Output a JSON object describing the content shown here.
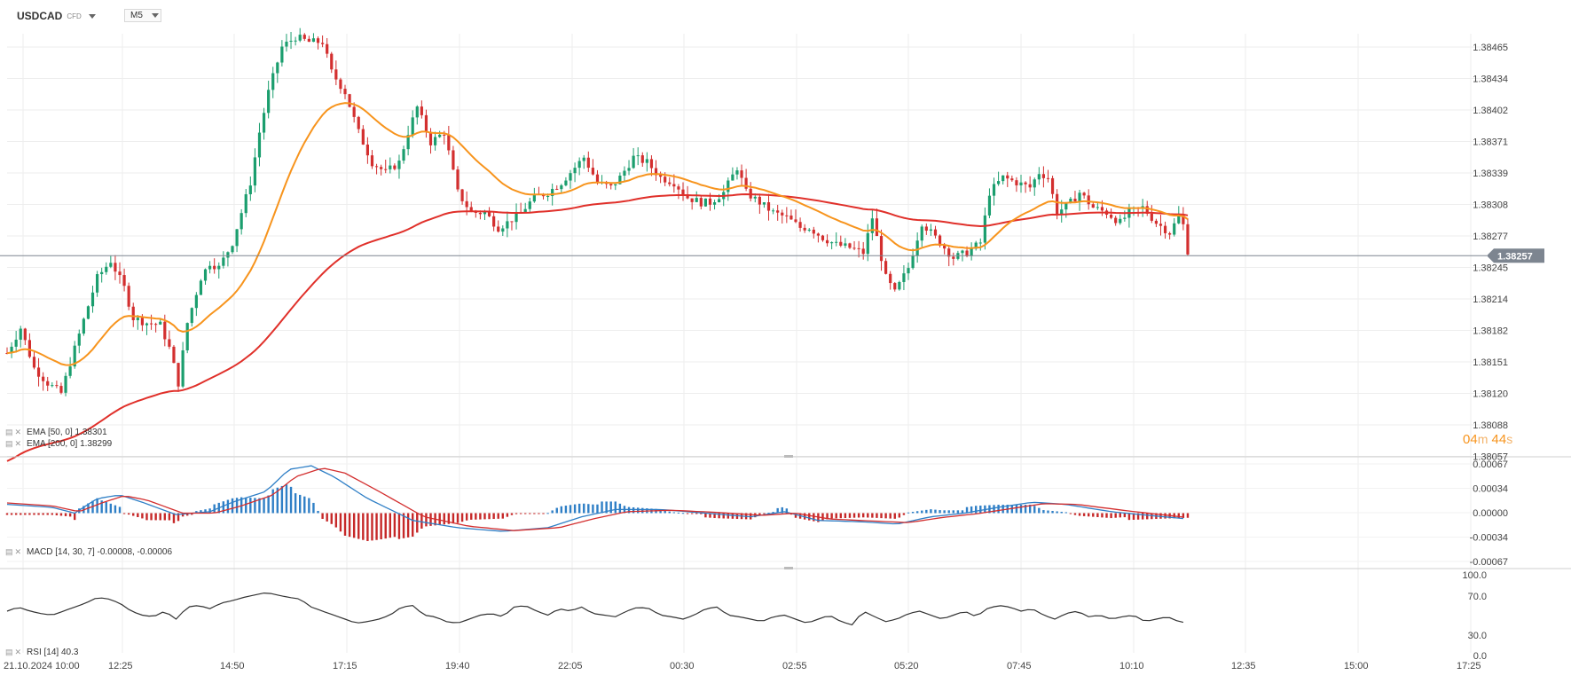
{
  "header": {
    "symbol": "USDCAD",
    "instrument_type": "CFD",
    "timeframe": "M5"
  },
  "countdown": {
    "minutes": "04",
    "m": "m",
    "seconds": "44",
    "s": "s"
  },
  "indicators": {
    "ema50": {
      "label": "EMA [50, 0] 1.38301",
      "color": "#f7941d"
    },
    "ema200": {
      "label": "EMA [200, 0] 1.38299",
      "color": "#e0302a"
    },
    "macd": {
      "label": "MACD [14, 30, 7] -0.00008, -0.00006"
    },
    "rsi": {
      "label": "RSI [14] 40.3"
    }
  },
  "colors": {
    "up": "#1b9e6e",
    "down": "#d32f2f",
    "macd_pos": "#2f7fc6",
    "macd_neg": "#c62828",
    "price_tag": "#7d8590"
  },
  "chart_data": [
    {
      "type": "candlestick",
      "title": "USDCAD M5",
      "y_ticks": [
        "1.38465",
        "1.38434",
        "1.38402",
        "1.38371",
        "1.38339",
        "1.38308",
        "1.38277",
        "1.38245",
        "1.38214",
        "1.38182",
        "1.38151",
        "1.38120",
        "1.38088",
        "1.38057"
      ],
      "ylim": [
        1.38057,
        1.3848
      ],
      "x_ticks": [
        "21.10.2024 10:00",
        "12:25",
        "14:50",
        "17:15",
        "19:40",
        "22:05",
        "00:30",
        "02:55",
        "05:20",
        "07:45",
        "10:10",
        "12:35",
        "15:00",
        "17:25"
      ],
      "current_price": "1.38257",
      "close_path": [
        [
          0,
          1.3816
        ],
        [
          6,
          1.38185
        ],
        [
          12,
          1.38145
        ],
        [
          18,
          1.3813
        ],
        [
          24,
          1.3812
        ],
        [
          28,
          1.3815
        ],
        [
          35,
          1.382
        ],
        [
          40,
          1.38235
        ],
        [
          46,
          1.38252
        ],
        [
          52,
          1.38225
        ],
        [
          56,
          1.38195
        ],
        [
          62,
          1.3819
        ],
        [
          68,
          1.38188
        ],
        [
          72,
          1.38165
        ],
        [
          76,
          1.3813
        ],
        [
          80,
          1.3819
        ],
        [
          86,
          1.38235
        ],
        [
          90,
          1.3825
        ],
        [
          94,
          1.38245
        ],
        [
          100,
          1.3827
        ],
        [
          104,
          1.383
        ],
        [
          108,
          1.3833
        ],
        [
          112,
          1.3838
        ],
        [
          116,
          1.3842
        ],
        [
          122,
          1.38465
        ],
        [
          128,
          1.38475
        ],
        [
          134,
          1.3847
        ],
        [
          140,
          1.3847
        ],
        [
          144,
          1.3844
        ],
        [
          150,
          1.3842
        ],
        [
          156,
          1.3838
        ],
        [
          162,
          1.3835
        ],
        [
          168,
          1.3834
        ],
        [
          174,
          1.3835
        ],
        [
          178,
          1.3838
        ],
        [
          182,
          1.38405
        ],
        [
          188,
          1.3837
        ],
        [
          194,
          1.3838
        ],
        [
          200,
          1.3832
        ],
        [
          206,
          1.383
        ],
        [
          212,
          1.383
        ],
        [
          218,
          1.38285
        ],
        [
          222,
          1.3829
        ],
        [
          228,
          1.383
        ],
        [
          234,
          1.38315
        ],
        [
          240,
          1.3832
        ],
        [
          246,
          1.3833
        ],
        [
          250,
          1.3834
        ],
        [
          256,
          1.38355
        ],
        [
          262,
          1.3833
        ],
        [
          268,
          1.38325
        ],
        [
          272,
          1.38335
        ],
        [
          278,
          1.38355
        ],
        [
          284,
          1.3835
        ],
        [
          290,
          1.38335
        ],
        [
          296,
          1.3833
        ],
        [
          302,
          1.38315
        ],
        [
          308,
          1.3831
        ],
        [
          312,
          1.3831
        ],
        [
          318,
          1.3832
        ],
        [
          324,
          1.38345
        ],
        [
          328,
          1.3832
        ],
        [
          334,
          1.3831
        ],
        [
          340,
          1.383
        ],
        [
          346,
          1.38295
        ],
        [
          352,
          1.38285
        ],
        [
          356,
          1.38285
        ],
        [
          362,
          1.38275
        ],
        [
          368,
          1.38268
        ],
        [
          374,
          1.38265
        ],
        [
          380,
          1.3826
        ],
        [
          384,
          1.38295
        ],
        [
          390,
          1.38235
        ],
        [
          394,
          1.3822
        ],
        [
          400,
          1.38245
        ],
        [
          406,
          1.3829
        ],
        [
          410,
          1.3828
        ],
        [
          416,
          1.38265
        ],
        [
          420,
          1.38255
        ],
        [
          426,
          1.3826
        ],
        [
          432,
          1.3827
        ],
        [
          436,
          1.3832
        ],
        [
          442,
          1.38335
        ],
        [
          448,
          1.3833
        ],
        [
          454,
          1.38325
        ],
        [
          458,
          1.3834
        ],
        [
          462,
          1.38335
        ],
        [
          466,
          1.383
        ],
        [
          472,
          1.3831
        ],
        [
          476,
          1.3832
        ],
        [
          482,
          1.38305
        ],
        [
          488,
          1.383
        ],
        [
          494,
          1.3829
        ],
        [
          498,
          1.383
        ],
        [
          504,
          1.38305
        ],
        [
          510,
          1.3829
        ],
        [
          516,
          1.3828
        ],
        [
          521,
          1.383
        ],
        [
          524,
          1.38262
        ]
      ]
    },
    {
      "type": "line",
      "title": "MACD [14, 30, 7] -0.00008, -0.00006",
      "y_ticks": [
        "0.00067",
        "0.00034",
        "0.00000",
        "-0.00034",
        "-0.00067"
      ],
      "ylim": [
        -0.00067,
        0.00067
      ],
      "macd_path": [
        [
          0,
          0.00012
        ],
        [
          20,
          8e-05
        ],
        [
          30,
          0.0
        ],
        [
          40,
          0.0002
        ],
        [
          50,
          0.00025
        ],
        [
          60,
          0.00015
        ],
        [
          75,
          -2e-05
        ],
        [
          90,
          2e-05
        ],
        [
          100,
          0.00015
        ],
        [
          115,
          0.0003
        ],
        [
          125,
          0.0006
        ],
        [
          135,
          0.00065
        ],
        [
          145,
          0.0005
        ],
        [
          160,
          0.0002
        ],
        [
          180,
          -0.0001
        ],
        [
          200,
          -0.0002
        ],
        [
          220,
          -0.00025
        ],
        [
          240,
          -0.0002
        ],
        [
          255,
          -5e-05
        ],
        [
          270,
          5e-05
        ],
        [
          290,
          5e-05
        ],
        [
          310,
          0.0
        ],
        [
          330,
          -5e-05
        ],
        [
          345,
          2e-05
        ],
        [
          360,
          -0.0001
        ],
        [
          380,
          -0.00012
        ],
        [
          395,
          -0.00015
        ],
        [
          410,
          -5e-05
        ],
        [
          425,
          0.0
        ],
        [
          440,
          8e-05
        ],
        [
          455,
          0.00015
        ],
        [
          470,
          0.00012
        ],
        [
          490,
          2e-05
        ],
        [
          510,
          -4e-05
        ],
        [
          524,
          -8e-05
        ]
      ],
      "signal_path": [
        [
          0,
          0.00014
        ],
        [
          20,
          0.0001
        ],
        [
          32,
          2e-05
        ],
        [
          42,
          0.00014
        ],
        [
          52,
          0.00024
        ],
        [
          62,
          0.00018
        ],
        [
          78,
          0.0
        ],
        [
          92,
          0.0
        ],
        [
          104,
          0.0001
        ],
        [
          118,
          0.00025
        ],
        [
          128,
          0.0005
        ],
        [
          140,
          0.00062
        ],
        [
          150,
          0.00055
        ],
        [
          165,
          0.0003
        ],
        [
          185,
          -5e-05
        ],
        [
          205,
          -0.00018
        ],
        [
          225,
          -0.00024
        ],
        [
          245,
          -0.0002
        ],
        [
          260,
          -8e-05
        ],
        [
          275,
          2e-05
        ],
        [
          295,
          4e-05
        ],
        [
          315,
          1e-05
        ],
        [
          335,
          -3e-05
        ],
        [
          350,
          0.0
        ],
        [
          365,
          -8e-05
        ],
        [
          385,
          -0.00011
        ],
        [
          400,
          -0.00013
        ],
        [
          415,
          -6e-05
        ],
        [
          430,
          -1e-05
        ],
        [
          445,
          6e-05
        ],
        [
          460,
          0.00013
        ],
        [
          475,
          0.00012
        ],
        [
          495,
          4e-05
        ],
        [
          512,
          -2e-05
        ],
        [
          524,
          -6e-05
        ]
      ]
    },
    {
      "type": "line",
      "title": "RSI [14] 40.3",
      "y_ticks": [
        "100.0",
        "70.0",
        "30.0",
        "0.0"
      ],
      "ylim": [
        0,
        100
      ],
      "rsi_path": [
        [
          0,
          55
        ],
        [
          5,
          60
        ],
        [
          10,
          55
        ],
        [
          15,
          52
        ],
        [
          20,
          50
        ],
        [
          25,
          55
        ],
        [
          30,
          60
        ],
        [
          35,
          65
        ],
        [
          40,
          72
        ],
        [
          45,
          70
        ],
        [
          50,
          65
        ],
        [
          55,
          55
        ],
        [
          60,
          50
        ],
        [
          65,
          48
        ],
        [
          70,
          55
        ],
        [
          75,
          45
        ],
        [
          80,
          60
        ],
        [
          85,
          62
        ],
        [
          90,
          58
        ],
        [
          95,
          65
        ],
        [
          100,
          68
        ],
        [
          105,
          72
        ],
        [
          110,
          75
        ],
        [
          115,
          78
        ],
        [
          120,
          75
        ],
        [
          125,
          72
        ],
        [
          130,
          70
        ],
        [
          135,
          60
        ],
        [
          140,
          55
        ],
        [
          145,
          50
        ],
        [
          150,
          45
        ],
        [
          155,
          40
        ],
        [
          160,
          42
        ],
        [
          165,
          45
        ],
        [
          170,
          50
        ],
        [
          175,
          60
        ],
        [
          180,
          62
        ],
        [
          185,
          50
        ],
        [
          190,
          48
        ],
        [
          195,
          42
        ],
        [
          200,
          40
        ],
        [
          205,
          45
        ],
        [
          210,
          50
        ],
        [
          215,
          52
        ],
        [
          220,
          48
        ],
        [
          225,
          60
        ],
        [
          230,
          62
        ],
        [
          235,
          55
        ],
        [
          240,
          50
        ],
        [
          245,
          58
        ],
        [
          250,
          55
        ],
        [
          255,
          60
        ],
        [
          260,
          52
        ],
        [
          265,
          50
        ],
        [
          270,
          48
        ],
        [
          275,
          55
        ],
        [
          280,
          60
        ],
        [
          285,
          58
        ],
        [
          290,
          50
        ],
        [
          295,
          48
        ],
        [
          300,
          45
        ],
        [
          305,
          50
        ],
        [
          310,
          58
        ],
        [
          315,
          60
        ],
        [
          320,
          50
        ],
        [
          325,
          48
        ],
        [
          330,
          45
        ],
        [
          335,
          42
        ],
        [
          340,
          48
        ],
        [
          345,
          50
        ],
        [
          350,
          45
        ],
        [
          355,
          40
        ],
        [
          360,
          45
        ],
        [
          365,
          50
        ],
        [
          370,
          42
        ],
        [
          375,
          38
        ],
        [
          380,
          55
        ],
        [
          385,
          48
        ],
        [
          390,
          42
        ],
        [
          395,
          45
        ],
        [
          400,
          52
        ],
        [
          405,
          55
        ],
        [
          410,
          50
        ],
        [
          415,
          45
        ],
        [
          420,
          50
        ],
        [
          425,
          55
        ],
        [
          430,
          48
        ],
        [
          435,
          58
        ],
        [
          440,
          62
        ],
        [
          445,
          60
        ],
        [
          450,
          55
        ],
        [
          455,
          58
        ],
        [
          460,
          50
        ],
        [
          465,
          45
        ],
        [
          470,
          52
        ],
        [
          475,
          55
        ],
        [
          480,
          48
        ],
        [
          485,
          50
        ],
        [
          490,
          45
        ],
        [
          495,
          48
        ],
        [
          500,
          50
        ],
        [
          505,
          42
        ],
        [
          510,
          45
        ],
        [
          515,
          48
        ],
        [
          520,
          42
        ],
        [
          524,
          40.3
        ]
      ]
    }
  ]
}
